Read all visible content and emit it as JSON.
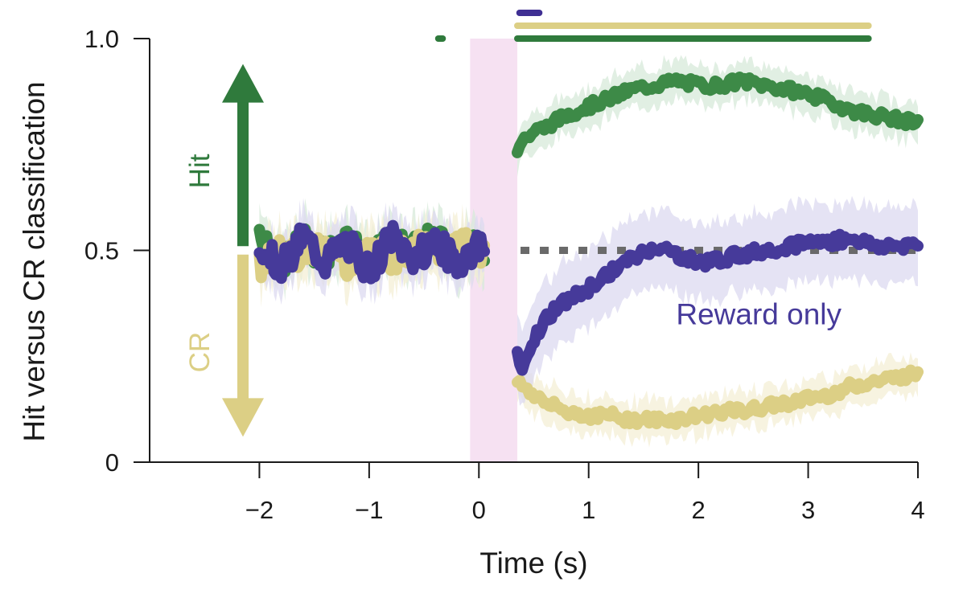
{
  "chart_data": {
    "type": "line",
    "title": "",
    "xlabel": "Time (s)",
    "ylabel": "Hit versus CR classification",
    "xlim": [
      -3,
      4
    ],
    "ylim": [
      0,
      1.0
    ],
    "x_ticks": [
      -2,
      -1,
      0,
      1,
      2,
      3,
      4
    ],
    "x_tick_labels": [
      "−2",
      "−1",
      "0",
      "1",
      "2",
      "3",
      "4"
    ],
    "y_ticks": [
      0,
      0.5,
      1.0
    ],
    "y_tick_labels": [
      "0",
      "0.5",
      "1.0"
    ],
    "stimulus_window": {
      "start": -0.08,
      "end": 0.35,
      "color": "#f6e1f2"
    },
    "chance_level": {
      "y": 0.5,
      "from_x": 0.35,
      "to_x": 4,
      "style": "dotted",
      "color": "#6a6a6a"
    },
    "series": [
      {
        "name": "Hit",
        "color": "#3d8a47",
        "band_color": "#d7e9d9",
        "segments": [
          {
            "x": [
              -2.0,
              -1.8,
              -1.6,
              -1.4,
              -1.2,
              -1.0,
              -0.8,
              -0.6,
              -0.4,
              -0.2,
              0.0,
              0.05
            ],
            "y": [
              0.55,
              0.47,
              0.52,
              0.49,
              0.53,
              0.47,
              0.52,
              0.5,
              0.53,
              0.49,
              0.51,
              0.5
            ]
          },
          {
            "x": [
              0.35,
              0.4,
              0.5,
              0.6,
              0.8,
              1.0,
              1.2,
              1.4,
              1.6,
              1.8,
              2.0,
              2.2,
              2.4,
              2.6,
              2.8,
              3.0,
              3.2,
              3.4,
              3.6,
              3.8,
              4.0
            ],
            "y": [
              0.74,
              0.76,
              0.78,
              0.79,
              0.82,
              0.84,
              0.86,
              0.88,
              0.89,
              0.9,
              0.89,
              0.89,
              0.9,
              0.89,
              0.88,
              0.87,
              0.85,
              0.83,
              0.82,
              0.81,
              0.8
            ]
          }
        ]
      },
      {
        "name": "CR",
        "color": "#dccf85",
        "band_color": "#f4efd6",
        "segments": [
          {
            "x": [
              -2.0,
              -1.8,
              -1.6,
              -1.4,
              -1.2,
              -1.0,
              -0.8,
              -0.6,
              -0.4,
              -0.2,
              0.0,
              0.05
            ],
            "y": [
              0.46,
              0.5,
              0.48,
              0.52,
              0.47,
              0.5,
              0.48,
              0.51,
              0.49,
              0.52,
              0.5,
              0.49
            ]
          },
          {
            "x": [
              0.35,
              0.4,
              0.5,
              0.6,
              0.8,
              1.0,
              1.2,
              1.4,
              1.6,
              1.8,
              2.0,
              2.2,
              2.4,
              2.6,
              2.8,
              3.0,
              3.2,
              3.4,
              3.6,
              3.8,
              4.0
            ],
            "y": [
              0.19,
              0.18,
              0.16,
              0.14,
              0.12,
              0.11,
              0.11,
              0.1,
              0.1,
              0.1,
              0.11,
              0.12,
              0.12,
              0.13,
              0.14,
              0.15,
              0.16,
              0.18,
              0.19,
              0.2,
              0.21
            ]
          }
        ]
      },
      {
        "name": "Reward only",
        "color": "#463a9a",
        "band_color": "#dcd9f0",
        "segments": [
          {
            "x": [
              -2.0,
              -1.8,
              -1.6,
              -1.4,
              -1.2,
              -1.0,
              -0.8,
              -0.6,
              -0.4,
              -0.2,
              0.0,
              0.05
            ],
            "y": [
              0.52,
              0.46,
              0.53,
              0.47,
              0.52,
              0.45,
              0.53,
              0.48,
              0.52,
              0.47,
              0.51,
              0.5
            ]
          },
          {
            "x": [
              0.35,
              0.4,
              0.5,
              0.6,
              0.8,
              1.0,
              1.2,
              1.4,
              1.6,
              1.8,
              2.0,
              2.2,
              2.4,
              2.6,
              2.8,
              3.0,
              3.2,
              3.4,
              3.6,
              3.8,
              4.0
            ],
            "y": [
              0.27,
              0.21,
              0.29,
              0.34,
              0.38,
              0.41,
              0.45,
              0.48,
              0.51,
              0.49,
              0.47,
              0.48,
              0.49,
              0.5,
              0.51,
              0.52,
              0.52,
              0.53,
              0.51,
              0.51,
              0.52
            ]
          }
        ]
      }
    ],
    "significance_bars": [
      {
        "series": "Reward only",
        "color": "#3f2f93",
        "row": 1,
        "segments": [
          [
            0.37,
            0.55
          ]
        ]
      },
      {
        "series": "CR",
        "color": "#dccf85",
        "row": 2,
        "segments": [
          [
            0.35,
            3.55
          ]
        ]
      },
      {
        "series": "Hit",
        "color": "#2f7a3c",
        "row": 3,
        "segments": [
          [
            -0.37,
            -0.33
          ],
          [
            0.35,
            3.55
          ]
        ]
      }
    ],
    "direction_arrows": [
      {
        "label": "Hit",
        "color": "#2f7a3c",
        "from_y": 0.51,
        "to_y": 0.94,
        "direction": "up"
      },
      {
        "label": "CR",
        "color": "#dccf85",
        "from_y": 0.49,
        "to_y": 0.06,
        "direction": "down"
      }
    ],
    "annotations": [
      {
        "text": "Reward only",
        "x": 2.55,
        "y": 0.325,
        "color": "#463a9a"
      }
    ]
  }
}
